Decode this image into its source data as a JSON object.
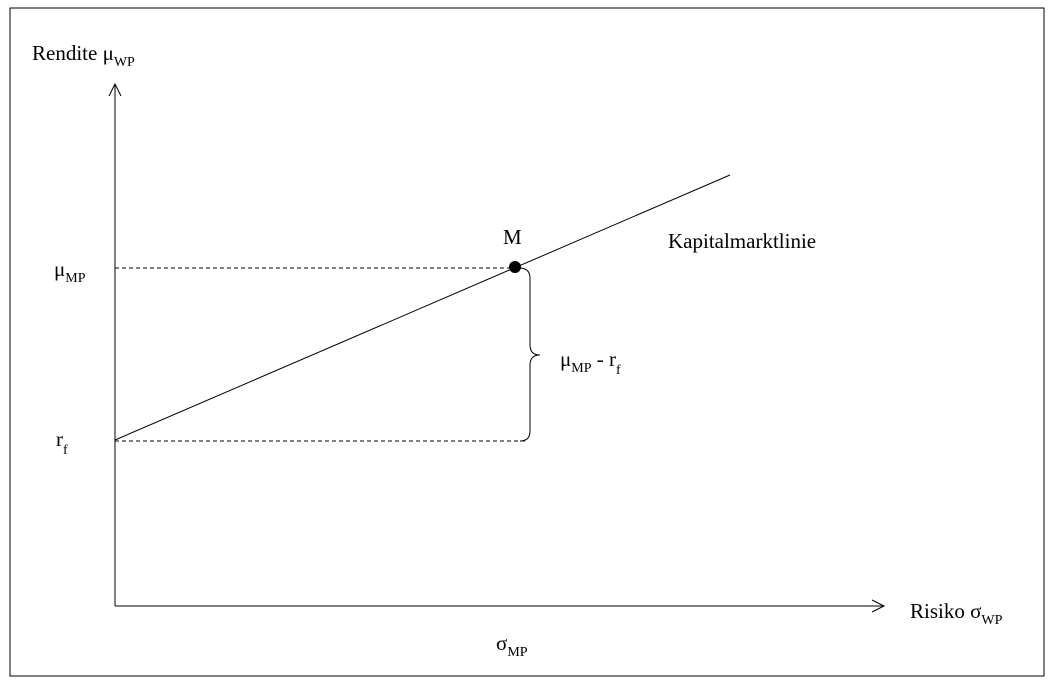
{
  "labels": {
    "y_axis": {
      "main": "Rendite μ",
      "sub": "WP"
    },
    "x_axis": {
      "main": "Risiko σ",
      "sub": "WP"
    },
    "mu_mp": {
      "main": "μ",
      "sub": "MP"
    },
    "r_f": {
      "main": "r",
      "sub": "f"
    },
    "sigma_mp": {
      "main": "σ",
      "sub": "MP"
    },
    "point": "M",
    "line": "Kapitalmarktlinie",
    "premium": {
      "main": "μ",
      "sub": "MP",
      "mid": " - r",
      "sub2": "f"
    }
  }
}
